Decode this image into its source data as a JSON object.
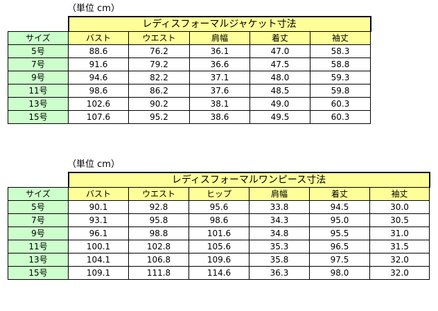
{
  "jacket": {
    "unit": "（単位 cm）",
    "title": "レディスフォーマルジャケット寸法",
    "corner": "サイズ",
    "columns": [
      "バスト",
      "ウエスト",
      "肩幅",
      "着丈",
      "袖丈"
    ],
    "rows": [
      {
        "size": "5号",
        "values": [
          "88.6",
          "76.2",
          "36.1",
          "47.0",
          "58.3"
        ]
      },
      {
        "size": "7号",
        "values": [
          "91.6",
          "79.2",
          "36.6",
          "47.5",
          "58.8"
        ]
      },
      {
        "size": "9号",
        "values": [
          "94.6",
          "82.2",
          "37.1",
          "48.0",
          "59.3"
        ]
      },
      {
        "size": "11号",
        "values": [
          "98.6",
          "86.2",
          "37.6",
          "48.5",
          "59.8"
        ]
      },
      {
        "size": "13号",
        "values": [
          "102.6",
          "90.2",
          "38.1",
          "49.0",
          "60.3"
        ]
      },
      {
        "size": "15号",
        "values": [
          "107.6",
          "95.2",
          "38.6",
          "49.5",
          "60.3"
        ]
      }
    ]
  },
  "onepiece": {
    "unit": "（単位 cm）",
    "title": "レディスフォーマルワンピース寸法",
    "corner": "サイズ",
    "columns": [
      "バスト",
      "ウエスト",
      "ヒップ",
      "肩幅",
      "着丈",
      "袖丈"
    ],
    "rows": [
      {
        "size": "5号",
        "values": [
          "90.1",
          "92.8",
          "95.6",
          "33.8",
          "94.5",
          "30.0"
        ]
      },
      {
        "size": "7号",
        "values": [
          "93.1",
          "95.8",
          "98.6",
          "34.3",
          "95.0",
          "30.5"
        ]
      },
      {
        "size": "9号",
        "values": [
          "96.1",
          "98.8",
          "101.6",
          "34.8",
          "95.5",
          "31.0"
        ]
      },
      {
        "size": "11号",
        "values": [
          "100.1",
          "102.8",
          "105.6",
          "35.3",
          "96.5",
          "31.5"
        ]
      },
      {
        "size": "13号",
        "values": [
          "104.1",
          "106.8",
          "109.6",
          "35.8",
          "97.5",
          "32.0"
        ]
      },
      {
        "size": "15号",
        "values": [
          "109.1",
          "111.8",
          "114.6",
          "36.3",
          "98.0",
          "32.0"
        ]
      }
    ]
  }
}
